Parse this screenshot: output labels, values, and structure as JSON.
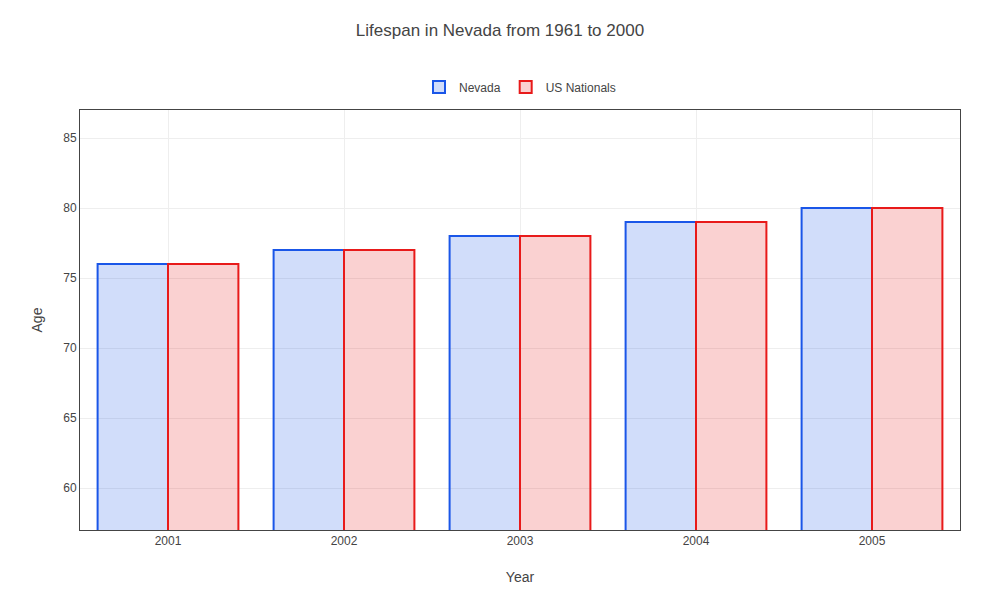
{
  "chart_data": {
    "type": "bar",
    "title": "Lifespan in Nevada from 1961 to 2000",
    "xlabel": "Year",
    "ylabel": "Age",
    "categories": [
      "2001",
      "2002",
      "2003",
      "2004",
      "2005"
    ],
    "series": [
      {
        "name": "Nevada",
        "color": "#1a56e8",
        "values": [
          76,
          77,
          78,
          79,
          80
        ]
      },
      {
        "name": "US Nationals",
        "color": "#e81a1a",
        "values": [
          76,
          77,
          78,
          79,
          80
        ]
      }
    ],
    "ylim": [
      57,
      87
    ],
    "yticks": [
      60,
      65,
      70,
      75,
      80,
      85
    ],
    "grid": true,
    "legend": "top"
  }
}
